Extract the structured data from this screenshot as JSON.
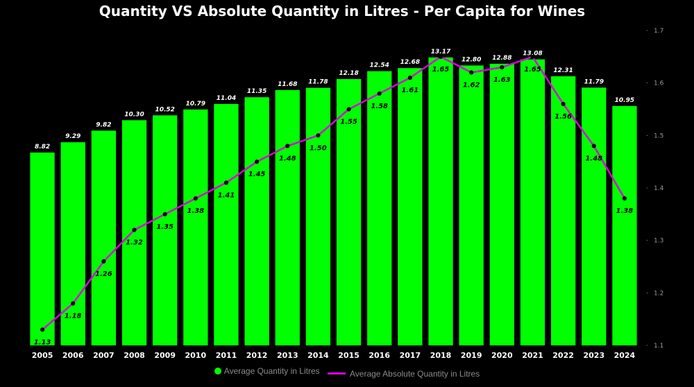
{
  "chart_data": {
    "type": "bar",
    "title": "Quantity VS Absolute Quantity in Litres - Per Capita for Wines",
    "categories": [
      "2005",
      "2006",
      "2007",
      "2008",
      "2009",
      "2010",
      "2011",
      "2012",
      "2013",
      "2014",
      "2015",
      "2016",
      "2017",
      "2018",
      "2019",
      "2020",
      "2021",
      "2022",
      "2023",
      "2024"
    ],
    "series": [
      {
        "name": "Average Quantity in Litres",
        "type": "bar",
        "axis": "left",
        "color": "#00ff00",
        "values": [
          8.82,
          9.29,
          9.82,
          10.3,
          10.52,
          10.79,
          11.04,
          11.35,
          11.68,
          11.78,
          12.18,
          12.54,
          12.68,
          13.17,
          12.8,
          12.88,
          13.08,
          12.31,
          11.79,
          10.95
        ],
        "labels": [
          "8.82",
          "9.29",
          "9.82",
          "10.30",
          "10.52",
          "10.79",
          "11.04",
          "11.35",
          "11.68",
          "11.78",
          "12.18",
          "12.54",
          "12.68",
          "13.17",
          "12.80",
          "12.88",
          "13.08",
          "12.31",
          "11.79",
          "10.95"
        ]
      },
      {
        "name": "Average Absolute Quantity in Litres",
        "type": "line",
        "axis": "right",
        "color": "#dd00dd",
        "values": [
          1.13,
          1.18,
          1.26,
          1.32,
          1.35,
          1.38,
          1.41,
          1.45,
          1.48,
          1.5,
          1.55,
          1.58,
          1.61,
          1.65,
          1.62,
          1.63,
          1.65,
          1.56,
          1.48,
          1.38
        ],
        "labels": [
          "1.13",
          "1.18",
          "1.26",
          "1.32",
          "1.35",
          "1.38",
          "1.41",
          "1.45",
          "1.48",
          "1.50",
          "1.55",
          "1.58",
          "1.61",
          "1.65",
          "1.62",
          "1.63",
          "1.65",
          "1.56",
          "1.48",
          "1.38"
        ]
      }
    ],
    "y_left": {
      "min": 0,
      "max": 14.4,
      "visible": false
    },
    "y_right": {
      "min": 1.1,
      "max": 1.7,
      "ticks": [
        1.1,
        1.2,
        1.3,
        1.4,
        1.5,
        1.6,
        1.7
      ],
      "tick_labels": [
        "1.1",
        "1.2",
        "1.3",
        "1.4",
        "1.5",
        "1.6",
        "1.7"
      ]
    },
    "grid": false,
    "legend_position": "bottom-center"
  },
  "colors": {
    "background": "#000000",
    "bar": "#00ff00",
    "line": "#dd00dd",
    "marker": "#000000",
    "text": "#ffffff",
    "axis_text": "#9a9a9a"
  }
}
